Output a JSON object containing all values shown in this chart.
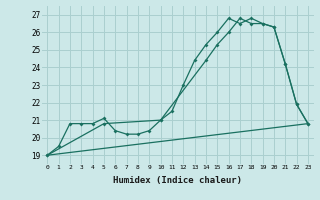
{
  "xlabel": "Humidex (Indice chaleur)",
  "bg_color": "#cce8e8",
  "grid_color": "#aacfcf",
  "line_color": "#1a7060",
  "xlim": [
    -0.5,
    23.5
  ],
  "ylim": [
    18.5,
    27.5
  ],
  "xticks": [
    0,
    1,
    2,
    3,
    4,
    5,
    6,
    7,
    8,
    9,
    10,
    11,
    12,
    13,
    14,
    15,
    16,
    17,
    18,
    19,
    20,
    21,
    22,
    23
  ],
  "yticks": [
    19,
    20,
    21,
    22,
    23,
    24,
    25,
    26,
    27
  ],
  "series1_x": [
    0,
    1,
    2,
    3,
    4,
    5,
    6,
    7,
    8,
    9,
    10,
    11,
    12,
    13,
    14,
    15,
    16,
    17,
    18,
    19,
    20,
    21,
    22,
    23
  ],
  "series1_y": [
    19.0,
    19.5,
    20.8,
    20.8,
    20.8,
    21.1,
    20.4,
    20.2,
    20.2,
    20.4,
    21.0,
    21.5,
    23.0,
    24.4,
    25.3,
    26.0,
    26.8,
    26.5,
    26.8,
    26.5,
    26.3,
    24.2,
    21.9,
    20.8
  ],
  "series2_x": [
    0,
    5,
    10,
    14,
    15,
    16,
    17,
    18,
    19,
    20,
    21,
    22,
    23
  ],
  "series2_y": [
    19.0,
    20.8,
    21.0,
    24.4,
    25.3,
    26.0,
    26.8,
    26.5,
    26.5,
    26.3,
    24.2,
    21.9,
    20.8
  ],
  "series3_x": [
    0,
    23
  ],
  "series3_y": [
    19.0,
    20.8
  ]
}
